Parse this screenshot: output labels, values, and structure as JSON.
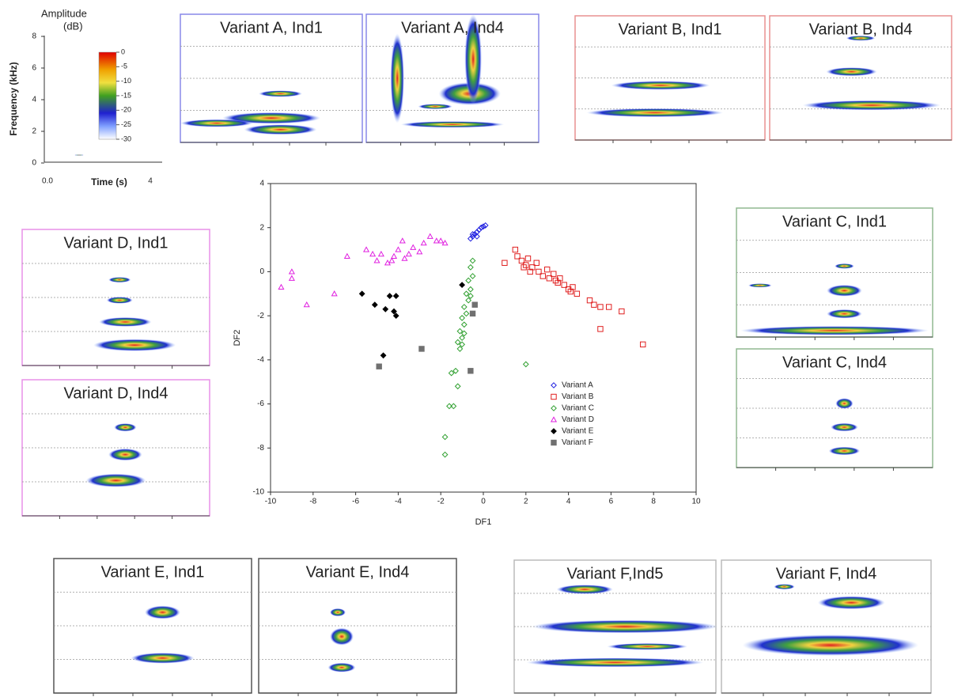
{
  "chart_data": {
    "type": "scatter",
    "x_label": "DF1",
    "y_label": "DF2",
    "xlim": [
      -10,
      10
    ],
    "ylim": [
      -10,
      4
    ],
    "xticks": [
      -10,
      -8,
      -6,
      -4,
      -2,
      0,
      2,
      4,
      6,
      8,
      10
    ],
    "yticks": [
      -10,
      -8,
      -6,
      -4,
      -2,
      0,
      2,
      4
    ],
    "legend": "lower right",
    "series": [
      {
        "name": "Variant A",
        "color": "#2020e0",
        "marker": "diamond-open",
        "x": [
          -0.6,
          -0.5,
          -0.4,
          -0.3,
          -0.2,
          -0.1,
          0.0,
          0.1,
          -0.5,
          -0.3
        ],
        "values": [
          1.5,
          1.6,
          1.7,
          1.8,
          1.9,
          2.0,
          2.05,
          2.1,
          1.7,
          1.6
        ]
      },
      {
        "name": "Variant B",
        "color": "#e02020",
        "marker": "square-open",
        "x": [
          1.0,
          1.5,
          1.6,
          1.8,
          2.0,
          2.1,
          2.3,
          2.5,
          2.6,
          2.8,
          3.0,
          3.1,
          3.3,
          3.5,
          3.6,
          3.8,
          4.0,
          4.2,
          4.4,
          5.0,
          5.2,
          5.5,
          5.9,
          6.5,
          5.5,
          7.5,
          2.2,
          1.9,
          3.4,
          4.1
        ],
        "values": [
          0.4,
          1.0,
          0.7,
          0.5,
          0.3,
          0.6,
          0.2,
          0.4,
          0.0,
          -0.2,
          0.1,
          -0.3,
          -0.1,
          -0.5,
          -0.3,
          -0.6,
          -0.8,
          -0.7,
          -1.0,
          -1.3,
          -1.5,
          -1.6,
          -1.6,
          -1.8,
          -2.6,
          -3.3,
          0.0,
          0.2,
          -0.4,
          -0.9
        ]
      },
      {
        "name": "Variant C",
        "color": "#30a030",
        "marker": "diamond-open",
        "x": [
          -0.5,
          -0.6,
          -0.5,
          -0.7,
          -0.6,
          -0.8,
          -0.7,
          -0.9,
          -0.8,
          -1.0,
          -0.9,
          -1.1,
          -1.0,
          -1.2,
          -1.1,
          -0.6,
          -0.9,
          -1.0,
          -1.3,
          -1.5,
          -1.2,
          -1.4,
          -1.6,
          -1.8,
          -1.8,
          2.0
        ],
        "values": [
          0.5,
          0.2,
          -0.2,
          -0.4,
          -0.8,
          -1.0,
          -1.3,
          -1.6,
          -1.9,
          -2.1,
          -2.4,
          -2.7,
          -3.0,
          -3.2,
          -3.5,
          -1.1,
          -2.8,
          -3.3,
          -4.5,
          -4.6,
          -5.2,
          -6.1,
          -6.1,
          -7.5,
          -8.3,
          -4.2
        ]
      },
      {
        "name": "Variant D",
        "color": "#e020e0",
        "marker": "triangle-open",
        "x": [
          -9.5,
          -9.0,
          -9.0,
          -8.3,
          -7.0,
          -6.4,
          -5.5,
          -5.2,
          -5.0,
          -4.8,
          -4.5,
          -4.2,
          -4.0,
          -3.8,
          -3.5,
          -3.3,
          -3.0,
          -2.8,
          -2.5,
          -2.2,
          -2.0,
          -1.8,
          -4.3,
          -3.7
        ],
        "values": [
          -0.7,
          -0.3,
          0.0,
          -1.5,
          -1.0,
          0.7,
          1.0,
          0.8,
          0.5,
          0.8,
          0.4,
          0.7,
          1.0,
          1.4,
          0.8,
          1.1,
          0.9,
          1.3,
          1.6,
          1.4,
          1.4,
          1.3,
          0.5,
          0.6
        ]
      },
      {
        "name": "Variant E",
        "color": "#000000",
        "marker": "diamond-filled",
        "x": [
          -5.7,
          -5.1,
          -4.6,
          -4.4,
          -4.2,
          -4.1,
          -4.1,
          -4.7,
          -1.0
        ],
        "values": [
          -1.0,
          -1.5,
          -1.7,
          -1.1,
          -1.8,
          -1.1,
          -2.0,
          -3.8,
          -0.6
        ]
      },
      {
        "name": "Variant F",
        "color": "#707070",
        "marker": "square-filled",
        "x": [
          -4.9,
          -2.9,
          -0.4,
          -0.5,
          -0.6
        ],
        "values": [
          -4.3,
          -3.5,
          -1.5,
          -1.9,
          -4.5
        ]
      }
    ]
  },
  "key": {
    "amplitude_label": [
      "Amplitude",
      "(dB)"
    ],
    "colorbar_ticks": [
      "0",
      "-5",
      "-10",
      "-15",
      "-20",
      "-25",
      "-30"
    ],
    "frequency_label": "Frequency (kHz)",
    "frequency_ticks": [
      "8",
      "6",
      "4",
      "2",
      "0"
    ],
    "time_label": "Time (s)",
    "time_ticks": [
      "0.0",
      "4"
    ]
  },
  "panels": [
    {
      "title": "Variant A, Ind1"
    },
    {
      "title": "Variant A, Ind4"
    },
    {
      "title": "Variant B, Ind1"
    },
    {
      "title": "Variant B, Ind4"
    },
    {
      "title": "Variant D, Ind1"
    },
    {
      "title": "Variant D, Ind4"
    },
    {
      "title": "Variant C, Ind1"
    },
    {
      "title": "Variant C, Ind4"
    },
    {
      "title": "Variant E, Ind1"
    },
    {
      "title": "Variant E, Ind4"
    },
    {
      "title": "Variant F,Ind5"
    },
    {
      "title": "Variant F, Ind4"
    }
  ]
}
